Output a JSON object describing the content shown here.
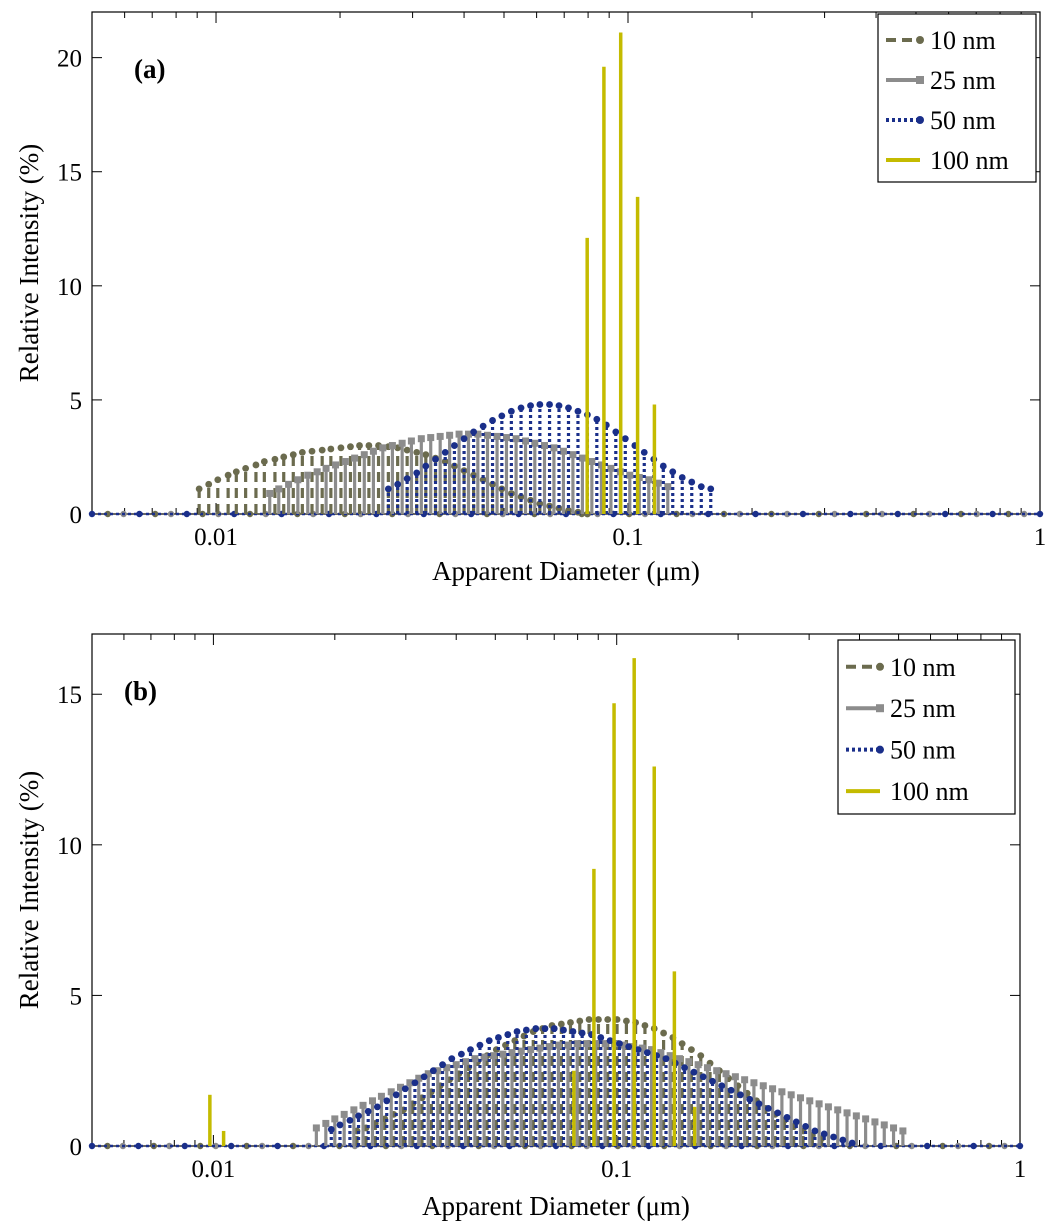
{
  "chart_data": [
    {
      "type": "stem",
      "panel_label": "(a)",
      "xlabel": "Apparent Diameter (μm)",
      "ylabel": "Relative Intensity (%)",
      "xscale": "log",
      "xlim": [
        0.005,
        1
      ],
      "ylim": [
        0,
        22
      ],
      "xticks": [
        0.01,
        0.1,
        1
      ],
      "xtick_labels": [
        "0.01",
        "0.1",
        "1"
      ],
      "yticks": [
        0,
        5,
        10,
        15,
        20
      ],
      "ytick_labels": [
        "0",
        "5",
        "10",
        "15",
        "20"
      ],
      "legend_position": "top-right",
      "series": [
        {
          "name": "10 nm",
          "color": "#6b6b4e",
          "style": "dashed",
          "marker": "circle",
          "x": [
            0.0091,
            0.0096,
            0.0101,
            0.0107,
            0.0112,
            0.0118,
            0.0125,
            0.0131,
            0.0139,
            0.0146,
            0.0154,
            0.0162,
            0.0171,
            0.0181,
            0.019,
            0.0201,
            0.0212,
            0.0223,
            0.0235,
            0.0248,
            0.0262,
            0.0276,
            0.0291,
            0.0307,
            0.0323,
            0.0341,
            0.036,
            0.0379,
            0.04,
            0.0422,
            0.0445,
            0.0469,
            0.0494,
            0.0521,
            0.055,
            0.058,
            0.0611,
            0.0645,
            0.068,
            0.0717,
            0.0756,
            0.0797
          ],
          "y": [
            1.1,
            1.3,
            1.5,
            1.7,
            1.85,
            2.0,
            2.15,
            2.3,
            2.4,
            2.5,
            2.6,
            2.7,
            2.75,
            2.8,
            2.85,
            2.9,
            2.95,
            3.0,
            3.0,
            3.0,
            2.95,
            2.9,
            2.8,
            2.7,
            2.6,
            2.45,
            2.3,
            2.1,
            1.9,
            1.7,
            1.5,
            1.3,
            1.1,
            0.9,
            0.75,
            0.6,
            0.45,
            0.35,
            0.25,
            0.15,
            0.08,
            0.0
          ]
        },
        {
          "name": "25 nm",
          "color": "#8c8c8c",
          "style": "solid",
          "marker": "square",
          "x": [
            0.0135,
            0.0142,
            0.015,
            0.0158,
            0.0167,
            0.0176,
            0.0185,
            0.0195,
            0.0206,
            0.0217,
            0.0229,
            0.0241,
            0.0254,
            0.0268,
            0.0283,
            0.0298,
            0.0315,
            0.0332,
            0.035,
            0.0369,
            0.0389,
            0.041,
            0.0432,
            0.0456,
            0.0481,
            0.0507,
            0.0535,
            0.0564,
            0.0594,
            0.0627,
            0.0661,
            0.0697,
            0.0735,
            0.0775,
            0.0817,
            0.0862,
            0.0909,
            0.0958,
            0.101,
            0.1065,
            0.1123,
            0.1184,
            0.1249
          ],
          "y": [
            0.9,
            1.1,
            1.3,
            1.5,
            1.7,
            1.85,
            2.0,
            2.15,
            2.3,
            2.45,
            2.6,
            2.75,
            2.9,
            3.0,
            3.1,
            3.2,
            3.3,
            3.35,
            3.4,
            3.45,
            3.5,
            3.5,
            3.5,
            3.45,
            3.4,
            3.35,
            3.3,
            3.2,
            3.1,
            3.0,
            2.9,
            2.75,
            2.6,
            2.45,
            2.3,
            2.15,
            2.0,
            1.85,
            1.7,
            1.6,
            1.5,
            1.35,
            1.2
          ]
        },
        {
          "name": "50 nm",
          "color": "#1a2f8a",
          "style": "dotted",
          "marker": "circle",
          "x": [
            0.0262,
            0.0276,
            0.0291,
            0.0307,
            0.0323,
            0.0341,
            0.036,
            0.0379,
            0.04,
            0.0422,
            0.0445,
            0.0469,
            0.0494,
            0.0521,
            0.055,
            0.058,
            0.0611,
            0.0645,
            0.068,
            0.0717,
            0.0756,
            0.0797,
            0.084,
            0.0886,
            0.0934,
            0.0985,
            0.1039,
            0.1095,
            0.1155,
            0.1218,
            0.1284,
            0.1354,
            0.1428,
            0.1506,
            0.1588
          ],
          "y": [
            1.1,
            1.3,
            1.55,
            1.8,
            2.1,
            2.4,
            2.7,
            3.0,
            3.3,
            3.6,
            3.85,
            4.1,
            4.3,
            4.5,
            4.65,
            4.75,
            4.8,
            4.8,
            4.75,
            4.65,
            4.5,
            4.35,
            4.15,
            3.9,
            3.6,
            3.3,
            3.0,
            2.7,
            2.4,
            2.1,
            1.85,
            1.6,
            1.4,
            1.2,
            1.1
          ]
        },
        {
          "name": "100 nm",
          "color": "#c4bb00",
          "style": "solid",
          "marker": "none",
          "x": [
            0.0796,
            0.0874,
            0.096,
            0.1055,
            0.1159
          ],
          "y": [
            12.1,
            19.6,
            21.1,
            13.9,
            4.8
          ]
        }
      ]
    },
    {
      "type": "stem",
      "panel_label": "(b)",
      "xlabel": "Apparent Diameter (μm)",
      "ylabel": "Relative Intensity (%)",
      "xscale": "log",
      "xlim": [
        0.005,
        1
      ],
      "ylim": [
        0,
        17
      ],
      "xticks": [
        0.01,
        0.1,
        1
      ],
      "xtick_labels": [
        "0.01",
        "0.1",
        "1"
      ],
      "yticks": [
        0,
        5,
        10,
        15
      ],
      "ytick_labels": [
        "0",
        "5",
        "10",
        "15"
      ],
      "legend_position": "top-right",
      "series": [
        {
          "name": "10 nm",
          "color": "#6b6b4e",
          "style": "dashed",
          "marker": "circle",
          "x": [
            0.0227,
            0.0239,
            0.0252,
            0.0266,
            0.028,
            0.0296,
            0.0312,
            0.0329,
            0.0347,
            0.0365,
            0.0385,
            0.0406,
            0.0429,
            0.0452,
            0.0477,
            0.0503,
            0.053,
            0.0559,
            0.0589,
            0.0621,
            0.0655,
            0.0691,
            0.0729,
            0.0768,
            0.081,
            0.0854,
            0.0901,
            0.095,
            0.1002,
            0.1057,
            0.1114,
            0.1175,
            0.1239,
            0.1307,
            0.1378,
            0.1453,
            0.1532,
            0.1616,
            0.1704,
            0.1797,
            0.1895,
            0.1998,
            0.2107,
            0.2222,
            0.2343,
            0.2471,
            0.2606,
            0.2748,
            0.2898,
            0.3056,
            0.3222
          ],
          "y": [
            0.5,
            0.6,
            0.75,
            0.9,
            1.05,
            1.2,
            1.4,
            1.6,
            1.8,
            2.0,
            2.2,
            2.4,
            2.6,
            2.8,
            3.0,
            3.2,
            3.35,
            3.5,
            3.65,
            3.8,
            3.9,
            4.0,
            4.05,
            4.1,
            4.15,
            4.2,
            4.2,
            4.2,
            4.2,
            4.15,
            4.1,
            4.0,
            3.9,
            3.75,
            3.6,
            3.4,
            3.2,
            3.0,
            2.75,
            2.5,
            2.25,
            2.0,
            1.75,
            1.5,
            1.25,
            1.05,
            0.85,
            0.65,
            0.5,
            0.35,
            0.25
          ]
        },
        {
          "name": "25 nm",
          "color": "#8c8c8c",
          "style": "solid",
          "marker": "square",
          "x": [
            0.018,
            0.019,
            0.02,
            0.0211,
            0.0223,
            0.0235,
            0.0248,
            0.0261,
            0.0276,
            0.0291,
            0.0307,
            0.0323,
            0.0341,
            0.036,
            0.0379,
            0.04,
            0.0422,
            0.0445,
            0.0469,
            0.0495,
            0.0522,
            0.055,
            0.058,
            0.0612,
            0.0645,
            0.068,
            0.0717,
            0.0757,
            0.0798,
            0.0841,
            0.0887,
            0.0936,
            0.0987,
            0.1041,
            0.1097,
            0.1157,
            0.122,
            0.1287,
            0.1357,
            0.1431,
            0.151,
            0.1592,
            0.1679,
            0.177,
            0.1867,
            0.1969,
            0.2076,
            0.2189,
            0.2309,
            0.2435,
            0.2568,
            0.2708,
            0.2856,
            0.3011,
            0.3176,
            0.3349,
            0.3532,
            0.3725,
            0.3928,
            0.4142,
            0.4368,
            0.4607,
            0.4858,
            0.5124
          ],
          "y": [
            0.6,
            0.75,
            0.9,
            1.05,
            1.2,
            1.35,
            1.5,
            1.65,
            1.8,
            1.95,
            2.1,
            2.25,
            2.4,
            2.5,
            2.6,
            2.7,
            2.8,
            2.9,
            2.95,
            3.0,
            3.05,
            3.1,
            3.15,
            3.2,
            3.25,
            3.3,
            3.35,
            3.35,
            3.4,
            3.4,
            3.4,
            3.4,
            3.4,
            3.35,
            3.3,
            3.25,
            3.2,
            3.1,
            3.0,
            2.9,
            2.8,
            2.7,
            2.6,
            2.5,
            2.4,
            2.3,
            2.2,
            2.1,
            2.0,
            1.9,
            1.8,
            1.7,
            1.6,
            1.5,
            1.4,
            1.3,
            1.2,
            1.1,
            1.0,
            0.9,
            0.8,
            0.7,
            0.6,
            0.5
          ]
        },
        {
          "name": "50 nm",
          "color": "#1a2f8a",
          "style": "dotted",
          "marker": "circle",
          "x": [
            0.0196,
            0.0206,
            0.0218,
            0.0229,
            0.0242,
            0.0255,
            0.0269,
            0.0284,
            0.0299,
            0.0316,
            0.0333,
            0.0351,
            0.037,
            0.039,
            0.0412,
            0.0434,
            0.0458,
            0.0483,
            0.0509,
            0.0537,
            0.0566,
            0.0597,
            0.063,
            0.0664,
            0.07,
            0.0738,
            0.0779,
            0.0821,
            0.0866,
            0.0913,
            0.0963,
            0.1016,
            0.1071,
            0.113,
            0.1191,
            0.1256,
            0.1325,
            0.1397,
            0.1473,
            0.1554,
            0.1639,
            0.1728,
            0.1822,
            0.1922,
            0.2027,
            0.2137,
            0.2254,
            0.2377,
            0.2507,
            0.2644,
            0.2788,
            0.294,
            0.3101,
            0.327,
            0.3449,
            0.3637,
            0.3836
          ],
          "y": [
            0.55,
            0.7,
            0.85,
            1.0,
            1.15,
            1.3,
            1.5,
            1.7,
            1.9,
            2.1,
            2.3,
            2.5,
            2.7,
            2.9,
            3.05,
            3.2,
            3.35,
            3.5,
            3.6,
            3.7,
            3.8,
            3.85,
            3.9,
            3.9,
            3.9,
            3.85,
            3.8,
            3.75,
            3.7,
            3.6,
            3.5,
            3.4,
            3.3,
            3.2,
            3.1,
            3.0,
            2.9,
            2.75,
            2.6,
            2.45,
            2.3,
            2.15,
            2.0,
            1.85,
            1.7,
            1.55,
            1.4,
            1.25,
            1.1,
            0.95,
            0.8,
            0.65,
            0.5,
            0.4,
            0.3,
            0.2,
            0.1
          ]
        },
        {
          "name": "100 nm",
          "color": "#c4bb00",
          "style": "solid",
          "marker": "none",
          "x": [
            0.0098,
            0.0106,
            0.0783,
            0.0878,
            0.0985,
            0.1105,
            0.1239,
            0.139,
            0.156
          ],
          "y": [
            1.7,
            0.5,
            2.5,
            9.2,
            14.7,
            16.2,
            12.6,
            5.8,
            1.3
          ]
        }
      ]
    }
  ]
}
